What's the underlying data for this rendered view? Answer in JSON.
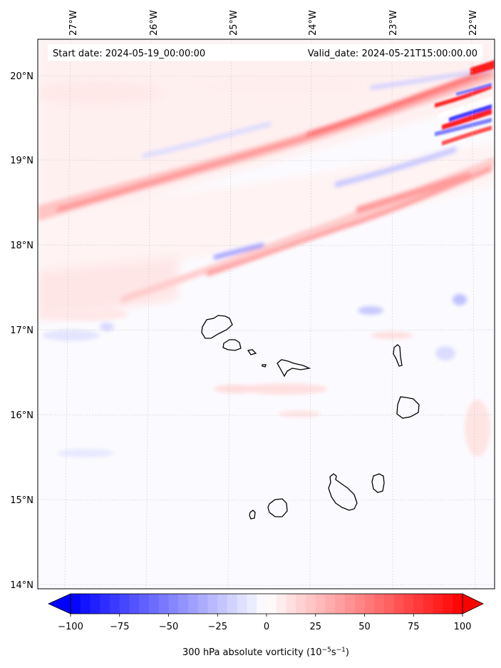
{
  "header": {
    "start_date": "Start date: 2024-05-19_00:00:00",
    "valid_date": "Valid_date: 2024-05-21T15:00:00.00"
  },
  "axes": {
    "lon_labels": [
      "27°W",
      "26°W",
      "25°W",
      "24°W",
      "23°W",
      "22°W"
    ],
    "lat_labels": [
      "20°N",
      "19°N",
      "18°N",
      "17°N",
      "16°N",
      "15°N",
      "14°N"
    ],
    "gridlines": true
  },
  "colorbar": {
    "tick_labels": [
      "−100",
      "−75",
      "−50",
      "−25",
      "0",
      "25",
      "50",
      "75",
      "100"
    ],
    "label_main": "300 hPa absolute vorticity (10",
    "label_exp1": "−5",
    "label_mid": "s",
    "label_exp2": "−1",
    "label_end": ")",
    "min": -100,
    "max": 100,
    "extend": "both",
    "colormap": "bwr",
    "color_low": "#0000ff",
    "color_mid": "#ffffff",
    "color_high": "#ff0000"
  },
  "map": {
    "field": "300 hPa absolute vorticity",
    "coastline_color": "#000000",
    "islands": [
      "Santo Antão",
      "São Vicente",
      "Santa Luzia",
      "Branco",
      "Raso",
      "São Nicolau",
      "Sal",
      "Boa Vista",
      "Maio",
      "Santiago",
      "Fogo",
      "Brava"
    ]
  }
}
